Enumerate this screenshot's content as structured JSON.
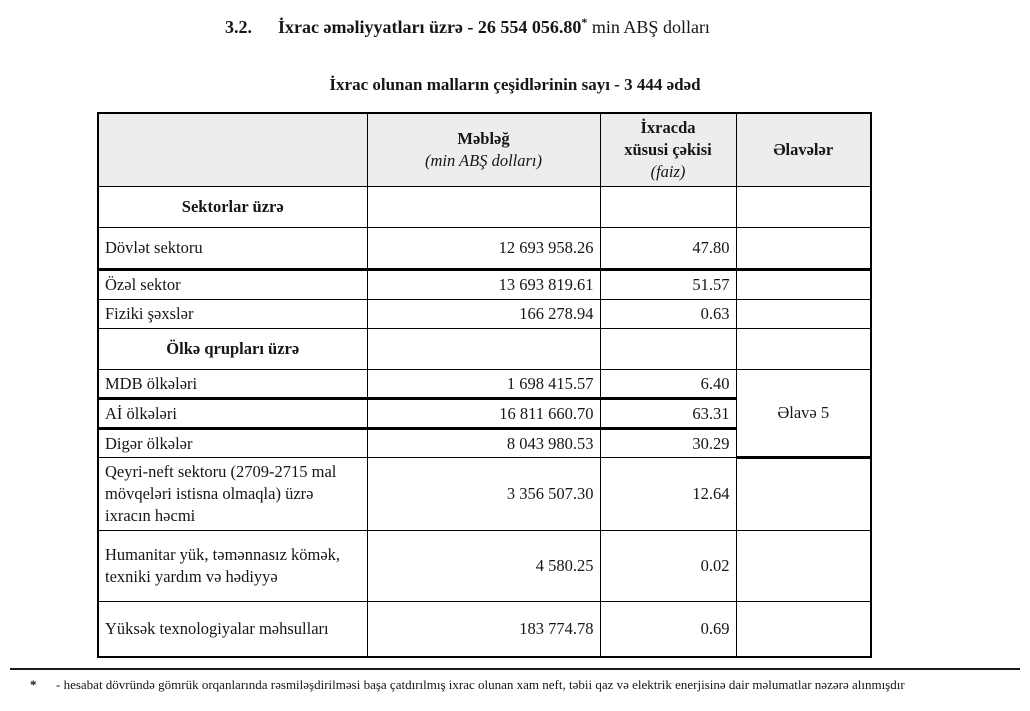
{
  "title": {
    "number": "3.2.",
    "bold_text": "İxrac əməliyyatları üzrə - 26 554 056.80",
    "asterisk": "*",
    "suffix": " min ABŞ dolları"
  },
  "subtitle": "İxrac olunan malların çeşidlərinin sayı  -  3 444 ədəd",
  "table": {
    "headers": {
      "col1": "",
      "col2_line1": "Məbləğ",
      "col2_line2": "(min ABŞ dolları)",
      "col3_line1": "İxracda",
      "col3_line2": "xüsusi çəkisi",
      "col3_line3": "(faiz)",
      "col4": "Əlavələr"
    },
    "rows": [
      {
        "type": "section",
        "label": "Sektorlar üzrə"
      },
      {
        "type": "data",
        "label": "Dövlət sektoru",
        "amount": "12 693 958.26",
        "share": "47.80"
      },
      {
        "type": "data",
        "label": "Özəl sektor",
        "amount": "13 693 819.61",
        "share": "51.57"
      },
      {
        "type": "data",
        "label": "Fiziki şəxslər",
        "amount": "166 278.94",
        "share": "0.63"
      },
      {
        "type": "section",
        "label": "Ölkə qrupları üzrə"
      },
      {
        "type": "data",
        "label": "MDB ölkələri",
        "amount": "1 698 415.57",
        "share": "6.40"
      },
      {
        "type": "data",
        "label": "Aİ ölkələri",
        "amount": "16 811 660.70",
        "share": "63.31"
      },
      {
        "type": "data",
        "label": "Digər ölkələr",
        "amount": "8 043 980.53",
        "share": "30.29"
      },
      {
        "type": "data",
        "label": "Qeyri-neft sektoru (2709-2715 mal mövqeləri istisna olmaqla) üzrə ixracın həcmi",
        "amount": "3 356 507.30",
        "share": "12.64"
      },
      {
        "type": "data",
        "label": "Humanitar yük, təmənnasız kömək, texniki yardım və hədiyyə",
        "amount": "4 580.25",
        "share": "0.02"
      },
      {
        "type": "data",
        "label": "Yüksək texnologiyalar məhsulları",
        "amount": "183 774.78",
        "share": "0.69"
      }
    ],
    "annex_note": "Əlavə 5"
  },
  "footnote": {
    "marker": "*",
    "text": "- hesabat dövründə gömrük orqanlarında rəsmiləşdirilməsi başa çatdırılmış ixrac olunan xam neft, təbii qaz və elektrik enerjisinə dair məlumatlar nəzərə alınmışdır"
  }
}
